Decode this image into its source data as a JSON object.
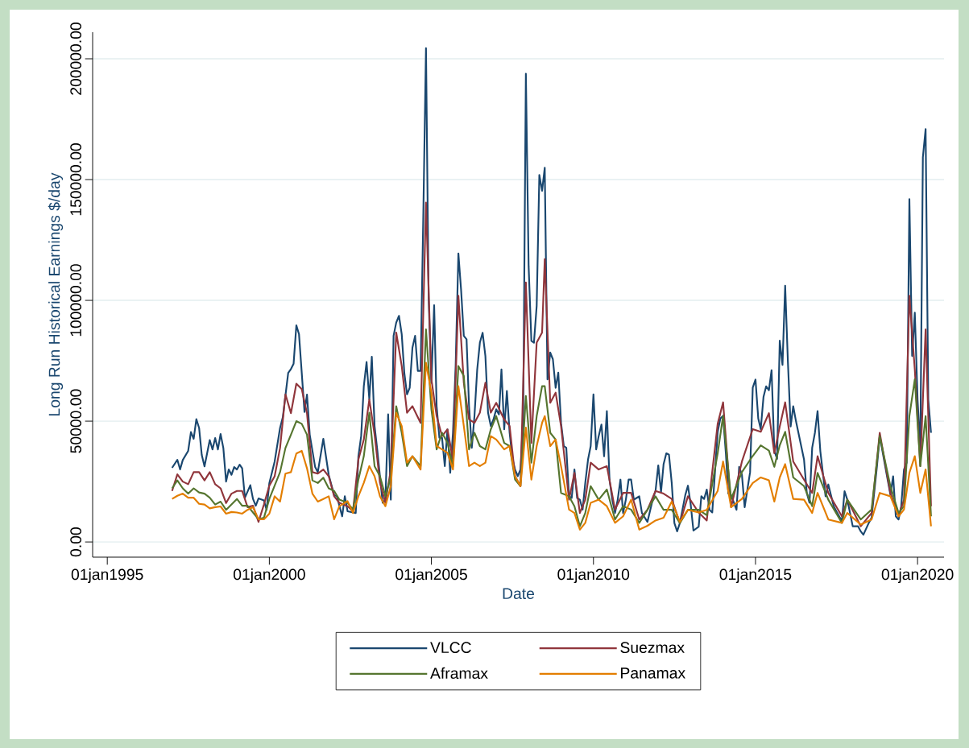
{
  "chart_data": {
    "type": "line",
    "xlabel": "Date",
    "ylabel": "Long Run Historical Earnings $/day",
    "xlim": [
      "1994-07-20",
      "2020-10-26"
    ],
    "ylim": [
      -6300,
      211000
    ],
    "xticks": [
      {
        "value": "1995-01-01",
        "label": "01jan1995"
      },
      {
        "value": "2000-01-01",
        "label": "01jan2000"
      },
      {
        "value": "2005-01-01",
        "label": "01jan2005"
      },
      {
        "value": "2010-01-01",
        "label": "01jan2010"
      },
      {
        "value": "2015-01-01",
        "label": "01jan2015"
      },
      {
        "value": "2020-01-01",
        "label": "01jan2020"
      }
    ],
    "yticks": [
      {
        "value": 0,
        "label": "0.00"
      },
      {
        "value": 50000,
        "label": "50000.00"
      },
      {
        "value": 100000,
        "label": "100000.00"
      },
      {
        "value": 150000,
        "label": "150000.00"
      },
      {
        "value": 200000,
        "label": "200000.00"
      }
    ],
    "grid": "y",
    "legend": "bottom",
    "x": [
      "1997-01",
      "1997-03",
      "1997-05",
      "1997-07",
      "1997-09",
      "1997-11",
      "1998-01",
      "1998-03",
      "1998-05",
      "1998-07",
      "1998-09",
      "1998-11",
      "1999-01",
      "1999-03",
      "1999-05",
      "1999-07",
      "1999-09",
      "1999-11",
      "2000-01",
      "2000-03",
      "2000-05",
      "2000-07",
      "2000-09",
      "2000-11",
      "2001-01",
      "2001-03",
      "2001-05",
      "2001-07",
      "2001-09",
      "2001-11",
      "2002-01",
      "2002-03",
      "2002-06",
      "2002-08",
      "2002-10",
      "2002-12",
      "2003-02",
      "2003-04",
      "2003-06",
      "2003-08",
      "2003-10",
      "2003-12",
      "2004-02",
      "2004-04",
      "2004-06",
      "2004-09",
      "2004-11",
      "2005-01",
      "2005-03",
      "2005-05",
      "2005-07",
      "2005-09",
      "2005-11",
      "2006-01",
      "2006-03",
      "2006-05",
      "2006-07",
      "2006-09",
      "2006-11",
      "2007-01",
      "2007-04",
      "2007-06",
      "2007-08",
      "2007-10",
      "2007-12",
      "2008-02",
      "2008-04",
      "2008-06",
      "2008-07",
      "2008-09",
      "2008-11",
      "2009-01",
      "2009-04",
      "2009-06",
      "2009-08",
      "2009-10",
      "2009-12",
      "2010-03",
      "2010-06",
      "2010-09",
      "2010-12",
      "2011-03",
      "2011-06",
      "2011-09",
      "2011-12",
      "2012-03",
      "2012-06",
      "2012-09",
      "2012-12",
      "2013-04",
      "2013-07",
      "2013-11",
      "2014-01",
      "2014-04",
      "2014-08",
      "2014-12",
      "2015-03",
      "2015-06",
      "2015-08",
      "2015-10",
      "2015-12",
      "2016-03",
      "2016-07",
      "2016-10",
      "2016-12",
      "2017-04",
      "2017-09",
      "2017-11",
      "2018-04",
      "2018-08",
      "2018-11",
      "2019-03",
      "2019-06",
      "2019-08",
      "2019-10",
      "2019-12",
      "2020-02",
      "2020-04",
      "2020-06"
    ],
    "series": [
      {
        "name": "VLCC",
        "color": "#1a476f",
        "x": [
          "1997-01",
          "1997-03",
          "1997-04",
          "1997-05",
          "1997-07",
          "1997-08",
          "1997-09",
          "1997-10",
          "1997-11",
          "1997-12",
          "1998-01",
          "1998-03",
          "1998-04",
          "1998-05",
          "1998-06",
          "1998-07",
          "1998-08",
          "1998-09",
          "1998-10",
          "1998-11",
          "1998-12",
          "1999-01",
          "1999-02",
          "1999-03",
          "1999-04",
          "1999-06",
          "1999-07",
          "1999-08",
          "1999-09",
          "1999-11",
          "1999-12",
          "2000-01",
          "2000-03",
          "2000-05",
          "2000-06",
          "2000-08",
          "2000-09",
          "2000-10",
          "2000-11",
          "2000-12",
          "2001-01",
          "2001-02",
          "2001-03",
          "2001-04",
          "2001-06",
          "2001-07",
          "2001-09",
          "2001-11",
          "2002-01",
          "2002-02",
          "2002-04",
          "2002-05",
          "2002-06",
          "2002-09",
          "2002-10",
          "2002-11",
          "2002-12",
          "2003-01",
          "2003-02",
          "2003-03",
          "2003-04",
          "2003-05",
          "2003-07",
          "2003-08",
          "2003-09",
          "2003-10",
          "2003-11",
          "2003-12",
          "2004-01",
          "2004-02",
          "2004-03",
          "2004-04",
          "2004-05",
          "2004-06",
          "2004-07",
          "2004-08",
          "2004-09",
          "2004-10",
          "2004-11",
          "2004-12",
          "2005-01",
          "2005-02",
          "2005-03",
          "2005-04",
          "2005-05",
          "2005-06",
          "2005-07",
          "2005-08",
          "2005-09",
          "2005-10",
          "2005-11",
          "2005-12",
          "2006-01",
          "2006-02",
          "2006-03",
          "2006-04",
          "2006-05",
          "2006-06",
          "2006-07",
          "2006-08",
          "2006-09",
          "2006-10",
          "2006-11",
          "2006-12",
          "2007-01",
          "2007-02",
          "2007-03",
          "2007-04",
          "2007-05",
          "2007-06",
          "2007-07",
          "2007-08",
          "2007-09",
          "2007-10",
          "2007-11",
          "2007-12",
          "2008-01",
          "2008-02",
          "2008-03",
          "2008-04",
          "2008-05",
          "2008-06",
          "2008-07",
          "2008-08",
          "2008-09",
          "2008-10",
          "2008-11",
          "2008-12",
          "2009-01",
          "2009-02",
          "2009-03",
          "2009-04",
          "2009-05",
          "2009-06",
          "2009-07",
          "2009-08",
          "2009-09",
          "2009-10",
          "2009-11",
          "2009-12",
          "2010-01",
          "2010-02",
          "2010-03",
          "2010-04",
          "2010-05",
          "2010-06",
          "2010-07",
          "2010-08",
          "2010-09",
          "2010-10",
          "2010-11",
          "2010-12",
          "2011-01",
          "2011-02",
          "2011-03",
          "2011-04",
          "2011-05",
          "2011-06",
          "2011-07",
          "2011-09",
          "2011-11",
          "2011-12",
          "2012-01",
          "2012-02",
          "2012-03",
          "2012-04",
          "2012-05",
          "2012-06",
          "2012-07",
          "2012-08",
          "2012-09",
          "2012-11",
          "2012-12",
          "2013-01",
          "2013-02",
          "2013-04",
          "2013-05",
          "2013-06",
          "2013-07",
          "2013-08",
          "2013-09",
          "2013-11",
          "2013-12",
          "2014-01",
          "2014-02",
          "2014-03",
          "2014-04",
          "2014-06",
          "2014-07",
          "2014-08",
          "2014-09",
          "2014-11",
          "2014-12",
          "2015-01",
          "2015-02",
          "2015-03",
          "2015-04",
          "2015-05",
          "2015-06",
          "2015-07",
          "2015-08",
          "2015-09",
          "2015-10",
          "2015-11",
          "2015-12",
          "2016-01",
          "2016-02",
          "2016-03",
          "2016-04",
          "2016-07",
          "2016-08",
          "2016-09",
          "2016-10",
          "2016-11",
          "2016-12",
          "2017-01",
          "2017-03",
          "2017-04",
          "2017-06",
          "2017-07",
          "2017-09",
          "2017-10",
          "2017-11",
          "2018-01",
          "2018-03",
          "2018-04",
          "2018-05",
          "2018-07",
          "2018-08",
          "2018-10",
          "2018-11",
          "2019-01",
          "2019-03",
          "2019-04",
          "2019-05",
          "2019-06",
          "2019-07",
          "2019-08",
          "2019-09",
          "2019-10",
          "2019-11",
          "2019-12",
          "2020-01",
          "2020-02",
          "2020-03",
          "2020-04",
          "2020-05",
          "2020-06"
        ],
        "values": [
          30700,
          34000,
          30000,
          33900,
          37700,
          45500,
          42700,
          50800,
          47200,
          36000,
          31300,
          42200,
          38300,
          43000,
          38300,
          44700,
          38900,
          25000,
          30000,
          27800,
          31000,
          30000,
          32000,
          30500,
          18300,
          23500,
          17800,
          15000,
          18000,
          17200,
          13300,
          24400,
          33300,
          47200,
          51600,
          70000,
          71600,
          73800,
          89700,
          86000,
          70000,
          53800,
          61000,
          44400,
          31000,
          28900,
          42700,
          27700,
          19400,
          18900,
          10600,
          18900,
          12700,
          12000,
          35500,
          43800,
          64500,
          74500,
          59000,
          76700,
          48000,
          38300,
          16200,
          17500,
          52800,
          17500,
          85300,
          90800,
          93600,
          86000,
          70100,
          61100,
          63800,
          80400,
          85300,
          70800,
          70800,
          133600,
          204400,
          100500,
          65900,
          98000,
          56200,
          43100,
          43100,
          31400,
          46600,
          28600,
          45200,
          72800,
          119400,
          104600,
          85300,
          83900,
          56200,
          39000,
          52100,
          71400,
          82500,
          86600,
          77000,
          53500,
          48000,
          50700,
          54900,
          52800,
          71400,
          46600,
          62500,
          45200,
          34800,
          30000,
          27200,
          30000,
          52100,
          193800,
          114300,
          83200,
          82500,
          97700,
          151900,
          145400,
          154900,
          67300,
          78400,
          75600,
          63800,
          70100,
          49300,
          39700,
          39000,
          18900,
          18200,
          30000,
          18200,
          17500,
          13400,
          24500,
          34100,
          39700,
          61100,
          38300,
          43800,
          48600,
          35500,
          54200,
          25800,
          17500,
          12000,
          17500,
          25800,
          12000,
          17500,
          25800,
          25800,
          17500,
          18200,
          18900,
          12000,
          8300,
          17800,
          21100,
          31700,
          20600,
          32200,
          36700,
          36100,
          24400,
          7800,
          4400,
          7800,
          19400,
          23300,
          15600,
          4700,
          6300,
          18900,
          17800,
          21700,
          13300,
          12200,
          45500,
          51100,
          52200,
          36700,
          20000,
          19400,
          13300,
          31100,
          27800,
          14400,
          28900,
          63900,
          67200,
          51100,
          46700,
          60000,
          64400,
          62800,
          71100,
          37800,
          34400,
          83300,
          73300,
          106100,
          74400,
          47800,
          56200,
          50000,
          34100,
          20300,
          16200,
          39000,
          45200,
          54200,
          37600,
          18900,
          23800,
          14800,
          12700,
          8600,
          21000,
          17500,
          6500,
          6500,
          4400,
          3000,
          7900,
          10000,
          31400,
          43800,
          31400,
          19600,
          27200,
          10600,
          9300,
          14800,
          30000,
          32800,
          141900,
          77000,
          94900,
          59000,
          38300,
          159200,
          170900,
          59000,
          45200
        ]
      },
      {
        "name": "Suezmax",
        "color": "#90353b",
        "values": [
          21100,
          28000,
          25000,
          23900,
          28900,
          28900,
          25500,
          28900,
          23900,
          22200,
          16100,
          20000,
          21100,
          21100,
          14400,
          15000,
          8300,
          15500,
          23300,
          27200,
          38900,
          61100,
          53300,
          65500,
          63300,
          53300,
          28900,
          28300,
          30000,
          27200,
          18900,
          16200,
          14800,
          12700,
          34100,
          42400,
          59000,
          44500,
          24500,
          16200,
          30000,
          86700,
          72800,
          53500,
          56200,
          49300,
          140500,
          67300,
          52100,
          43800,
          46600,
          34100,
          101900,
          65900,
          50700,
          49300,
          53500,
          65900,
          53500,
          57600,
          50700,
          48000,
          27200,
          23100,
          107400,
          41000,
          82500,
          86700,
          117100,
          57600,
          61800,
          48000,
          17500,
          28600,
          12000,
          17500,
          32800,
          30000,
          31400,
          13400,
          20300,
          20300,
          9300,
          13300,
          21100,
          20000,
          17800,
          7800,
          18900,
          12200,
          8900,
          48900,
          57800,
          14400,
          33300,
          46700,
          45600,
          53300,
          36700,
          47800,
          57800,
          33300,
          25800,
          20300,
          35500,
          20300,
          10600,
          17500,
          6500,
          12000,
          45200,
          20300,
          10600,
          17500,
          101900,
          71400,
          31400,
          88000,
          14800
        ]
      },
      {
        "name": "Aframax",
        "color": "#55752f",
        "values": [
          22200,
          25500,
          22200,
          20000,
          22200,
          20500,
          20000,
          18300,
          15500,
          16700,
          13300,
          15500,
          17800,
          15000,
          15000,
          12200,
          9400,
          10000,
          17800,
          23300,
          28900,
          38900,
          44400,
          50000,
          48900,
          44400,
          25500,
          24400,
          26600,
          22200,
          21100,
          17500,
          16200,
          13400,
          25800,
          35500,
          53500,
          31400,
          27200,
          18900,
          27200,
          56200,
          45200,
          31400,
          35500,
          31400,
          88000,
          54900,
          38300,
          45200,
          41000,
          31400,
          72800,
          68700,
          38300,
          45200,
          39700,
          38300,
          46600,
          52100,
          41000,
          39700,
          25800,
          23100,
          60400,
          32800,
          52100,
          64500,
          64500,
          45200,
          42400,
          20300,
          18900,
          14800,
          6500,
          12000,
          23100,
          17500,
          21700,
          9300,
          14800,
          13400,
          7900,
          13300,
          18900,
          13300,
          13300,
          7800,
          13300,
          13300,
          11100,
          36700,
          52200,
          17800,
          28900,
          35600,
          40000,
          37800,
          31100,
          40000,
          45600,
          26700,
          23100,
          14800,
          28600,
          17500,
          7900,
          17500,
          9300,
          13400,
          43800,
          23100,
          12000,
          14800,
          52100,
          67300,
          31400,
          52100,
          10600
        ]
      },
      {
        "name": "Panamax",
        "color": "#e37e00",
        "values": [
          17800,
          19100,
          20000,
          18300,
          18300,
          15800,
          15500,
          13900,
          14400,
          14700,
          11700,
          12400,
          12200,
          11700,
          13300,
          14400,
          9400,
          9400,
          11700,
          18900,
          16700,
          28300,
          28900,
          36600,
          37700,
          30500,
          20000,
          16700,
          17800,
          18900,
          9400,
          14800,
          16900,
          12000,
          18900,
          24500,
          31400,
          27200,
          18900,
          14800,
          23100,
          53500,
          48000,
          32800,
          35500,
          30000,
          74200,
          61800,
          39700,
          38300,
          36900,
          30000,
          64500,
          48000,
          31400,
          32800,
          31400,
          32800,
          43800,
          42400,
          38300,
          39700,
          27200,
          23100,
          47300,
          25800,
          39700,
          49300,
          52100,
          39700,
          42400,
          31400,
          13400,
          12000,
          5100,
          7900,
          16200,
          17500,
          14800,
          7900,
          10600,
          17500,
          5100,
          6700,
          8900,
          10000,
          16700,
          8300,
          13300,
          12200,
          13300,
          21100,
          33300,
          14400,
          17800,
          24400,
          26700,
          25500,
          16700,
          26700,
          32200,
          17800,
          17500,
          12000,
          20300,
          9300,
          7900,
          12000,
          7200,
          9300,
          20300,
          18900,
          10600,
          13400,
          28600,
          35500,
          20300,
          30000,
          6500
        ]
      }
    ]
  }
}
